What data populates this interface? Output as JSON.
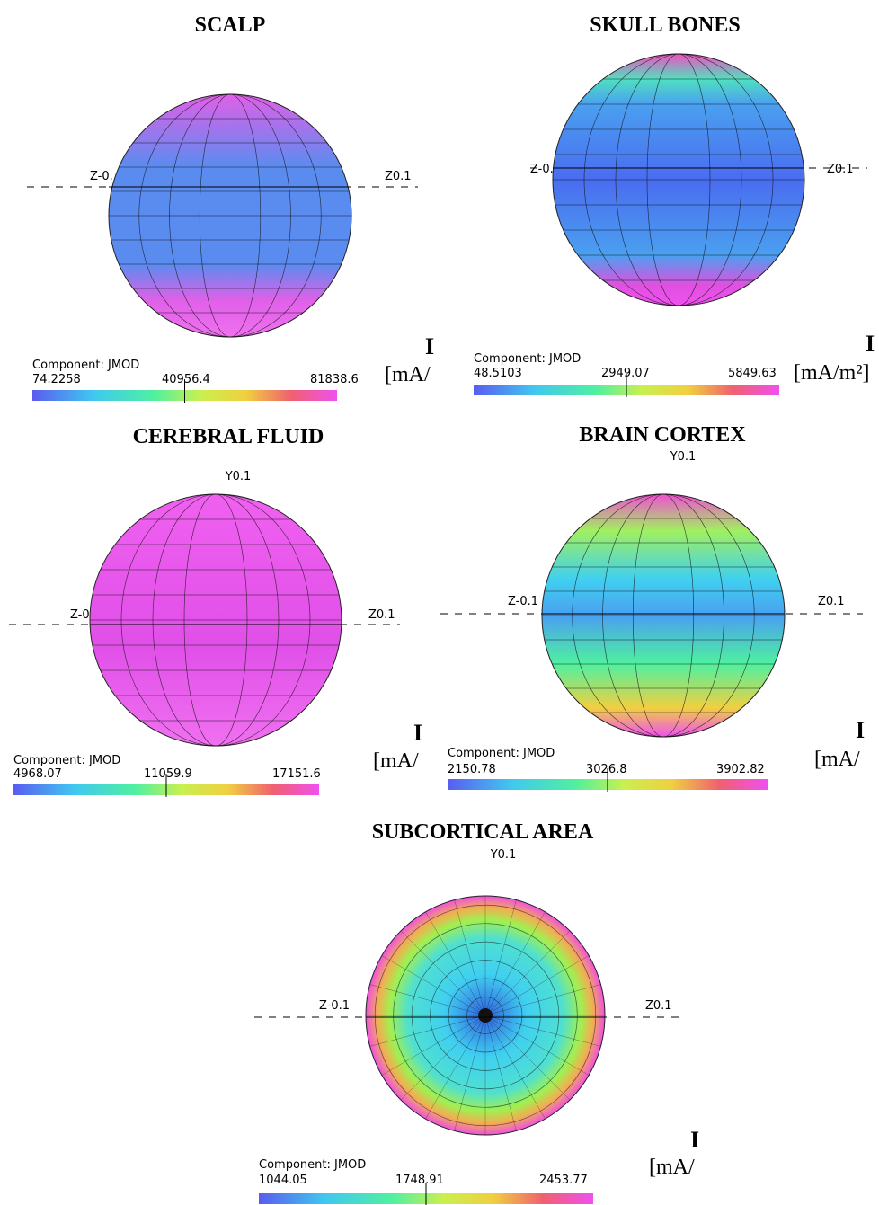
{
  "panels": [
    {
      "title": "SCALP",
      "z_neg": "Z-0.",
      "z_pos": "Z0.1",
      "component": "Component: JMOD",
      "min": "74.2258",
      "mid": "40956.4",
      "max": "81838.6",
      "unit_symbol": "I",
      "unit": "[mA/"
    },
    {
      "title": "SKULL BONES",
      "z_neg": "Z-0.",
      "z_pos": "Z0.1",
      "component": "Component: JMOD",
      "min": "48.5103",
      "mid": "2949.07",
      "max": "5849.63",
      "unit_symbol": "I",
      "unit": "[mA/m²]"
    },
    {
      "title": "CEREBRAL FLUID",
      "y_label": "Y0.1",
      "z_neg": "Z-0",
      "z_pos": "Z0.1",
      "component": "Component: JMOD",
      "min": "4968.07",
      "mid": "11059.9",
      "max": "17151.6",
      "unit_symbol": "I",
      "unit": "[mA/"
    },
    {
      "title": "BRAIN CORTEX",
      "y_label": "Y0.1",
      "z_neg": "Z-0.1",
      "z_pos": "Z0.1",
      "component": "Component: JMOD",
      "min": "2150.78",
      "mid": "3026.8",
      "max": "3902.82",
      "unit_symbol": "I",
      "unit": "[mA/"
    },
    {
      "title": "SUBCORTICAL AREA",
      "y_label": "Y0.1",
      "z_neg": "Z-0.1",
      "z_pos": "Z0.1",
      "component": "Component: JMOD",
      "min": "1044.05",
      "mid": "1748.91",
      "max": "2453.77",
      "unit_symbol": "I",
      "unit": "[mA/"
    }
  ]
}
